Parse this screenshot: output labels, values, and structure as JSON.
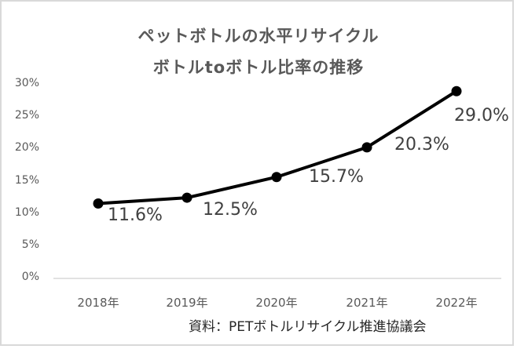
{
  "chart_data": {
    "type": "line",
    "title": "ペットボトルの水平リサイクル ボトルtoボトル比率の推移",
    "title_lines": [
      "ペットボトルの水平リサイクル",
      "ボトルtoボトル比率の推移"
    ],
    "categories": [
      "2018年",
      "2019年",
      "2020年",
      "2021年",
      "2022年"
    ],
    "series": [
      {
        "name": "ボトルtoボトル比率",
        "values": [
          11.6,
          12.5,
          15.7,
          20.3,
          29.0
        ],
        "color": "#000000"
      }
    ],
    "data_labels": [
      "11.6%",
      "12.5%",
      "15.7%",
      "20.3%",
      "29.0%"
    ],
    "yticks": [
      "30%",
      "25%",
      "20%",
      "15%",
      "10%",
      "5%",
      "0%"
    ],
    "ylim": [
      0,
      30
    ],
    "xlabel": "",
    "ylabel": "",
    "grid": false,
    "legend": "none",
    "source": "資料：PETボトルリサイクル推進協議会"
  }
}
